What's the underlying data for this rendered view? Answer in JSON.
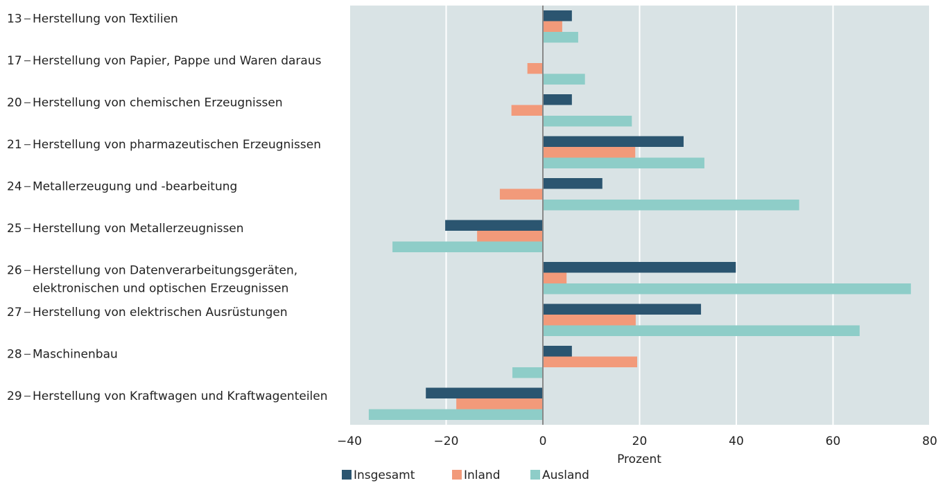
{
  "chart_data": {
    "type": "barh",
    "categories": [
      "13",
      "17",
      "20",
      "21",
      "24",
      "25",
      "26",
      "27",
      "28",
      "29"
    ],
    "category_names": [
      "Herstellung von Textilien",
      "Herstellung von Papier, Pappe und Waren daraus",
      "Herstellung von chemischen Erzeugnissen",
      "Herstellung von pharmazeutischen Erzeugnissen",
      "Metallerzeugung und -bearbeitung",
      "Herstellung von Metallerzeugnissen",
      [
        "Herstellung von Datenverarbeitungsgeräten,",
        "elektronischen und optischen Erzeugnissen"
      ],
      "Herstellung von elektrischen Ausrüstungen",
      "Maschinenbau",
      "Herstellung von Kraftwagen und Kraftwagenteilen"
    ],
    "series": [
      {
        "name": "Insgesamt",
        "color": "#2b5570",
        "values": [
          6.0,
          null,
          6.0,
          29.1,
          12.3,
          -20.2,
          39.9,
          32.7,
          6.0,
          -24.2
        ]
      },
      {
        "name": "Inland",
        "color": "#f29a7a",
        "values": [
          4.0,
          -3.2,
          -6.5,
          19.1,
          -8.9,
          -13.6,
          4.9,
          19.2,
          19.5,
          -17.9
        ]
      },
      {
        "name": "Ausland",
        "color": "#8ecdc8",
        "values": [
          7.3,
          8.7,
          18.4,
          33.4,
          53.0,
          -31.1,
          76.1,
          65.5,
          -6.3,
          -36.0
        ]
      }
    ],
    "xlabel": "Prozent",
    "xlim": [
      -40,
      80
    ],
    "xticks": [
      {
        "value": -40,
        "label": "−40"
      },
      {
        "value": -20,
        "label": "−20"
      },
      0,
      20,
      40,
      60,
      80
    ],
    "grid": true,
    "legend": "bottom"
  }
}
